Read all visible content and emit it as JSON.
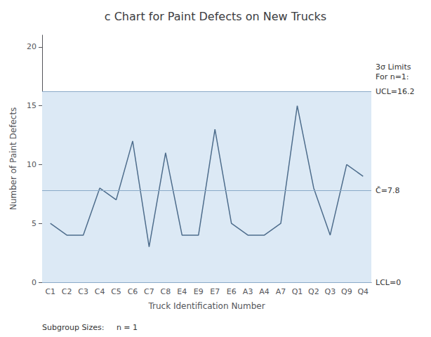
{
  "chart_data": {
    "type": "line",
    "title": "c Chart for Paint Defects on New Trucks",
    "xlabel": "Truck Identification Number",
    "ylabel": "Number of Paint Defects",
    "categories": [
      "C1",
      "C2",
      "C3",
      "C4",
      "C5",
      "C6",
      "C7",
      "C8",
      "E4",
      "E9",
      "E7",
      "E6",
      "A3",
      "A4",
      "A7",
      "Q1",
      "Q2",
      "Q3",
      "Q9",
      "Q4"
    ],
    "values": [
      5,
      4,
      4,
      8,
      7,
      12,
      3,
      11,
      4,
      4,
      13,
      5,
      4,
      4,
      5,
      15,
      8,
      4,
      10,
      9
    ],
    "color": "#4e6d8c",
    "ucl": 16.2,
    "lcl": 0,
    "center": 7.8,
    "ylim": [
      0,
      21
    ],
    "yticks": [
      0,
      5,
      10,
      15,
      20
    ],
    "grid": false,
    "annotation_sigma": "3σ Limits\nFor n=1:",
    "annotation_ucl": "UCL=16.2",
    "annotation_center": "Č=7.8",
    "annotation_lcl": "LCL=0",
    "subgroup_text": "Subgroup Sizes:     n = 1"
  }
}
